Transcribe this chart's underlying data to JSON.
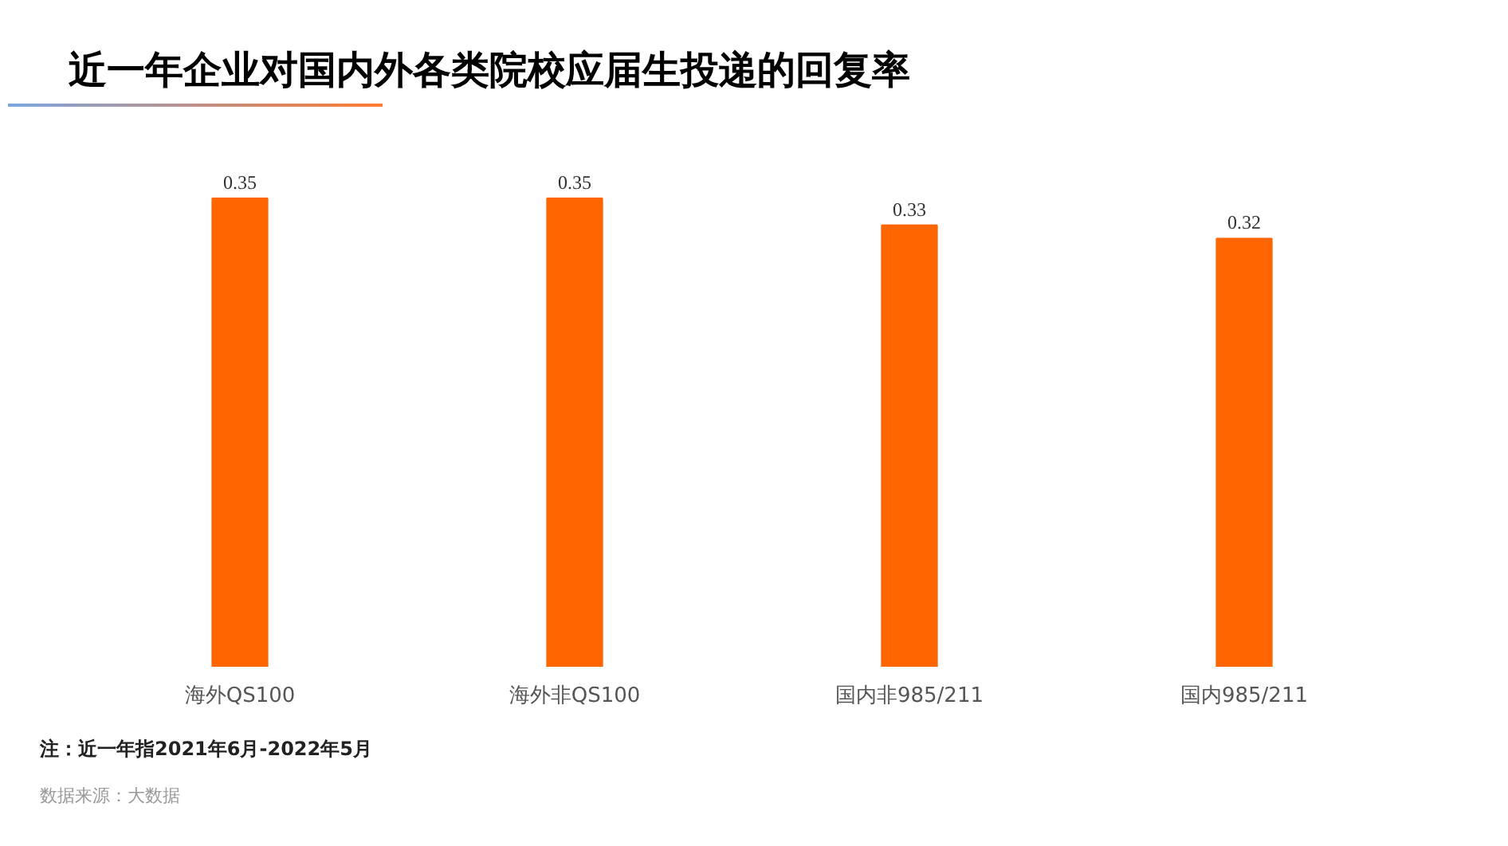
{
  "chart_data": {
    "type": "bar",
    "title": "近一年企业对国内外各类院校应届生投递的回复率",
    "categories": [
      "海外QS100",
      "海外非QS100",
      "国内非985/211",
      "国内985/211"
    ],
    "values": [
      0.35,
      0.35,
      0.33,
      0.32
    ],
    "color": "#ff6600",
    "data_labels": true,
    "tick_labels": "x",
    "grid": false,
    "annotations": [
      "注：近一年指2021年6月-2022年5月",
      "数据来源：大数据"
    ]
  }
}
